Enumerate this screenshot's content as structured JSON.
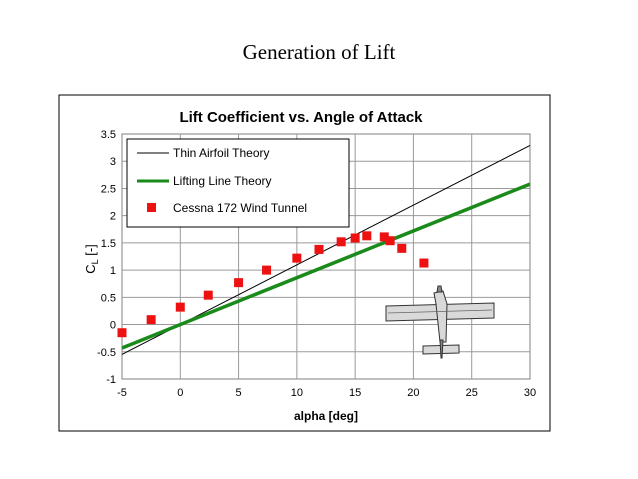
{
  "slide": {
    "title": "Generation of Lift"
  },
  "chart_data": {
    "type": "scatter",
    "title": "Lift Coefficient vs. Angle of Attack",
    "xlabel": "alpha [deg]",
    "ylabel_main": "C",
    "ylabel_sub": "L",
    "ylabel_unit": " [-]",
    "xlim": [
      -5,
      30
    ],
    "ylim": [
      -1,
      3.5
    ],
    "xticks": [
      -5,
      0,
      5,
      10,
      15,
      20,
      25,
      30
    ],
    "yticks": [
      -1,
      -0.5,
      0,
      0.5,
      1,
      1.5,
      2,
      2.5,
      3,
      3.5
    ],
    "grid": true,
    "legend_position": "top-left",
    "series": [
      {
        "name": "Thin Airfoil Theory",
        "kind": "line",
        "color": "#000000",
        "x": [
          -5,
          30
        ],
        "y": [
          -0.548,
          3.29
        ]
      },
      {
        "name": "Lifting Line Theory",
        "kind": "line",
        "color": "#1a8a1a",
        "x": [
          -5,
          30
        ],
        "y": [
          -0.43,
          2.58
        ]
      },
      {
        "name": "Cessna 172 Wind Tunnel",
        "kind": "scatter",
        "color": "#ee1111",
        "x": [
          -5,
          -2.5,
          0,
          2.4,
          5,
          7.4,
          10,
          11.9,
          13.8,
          15,
          16,
          17.5,
          18,
          19,
          20.9
        ],
        "y": [
          -0.15,
          0.09,
          0.32,
          0.54,
          0.77,
          1.0,
          1.22,
          1.38,
          1.52,
          1.59,
          1.63,
          1.61,
          1.54,
          1.4,
          1.13
        ]
      }
    ]
  }
}
